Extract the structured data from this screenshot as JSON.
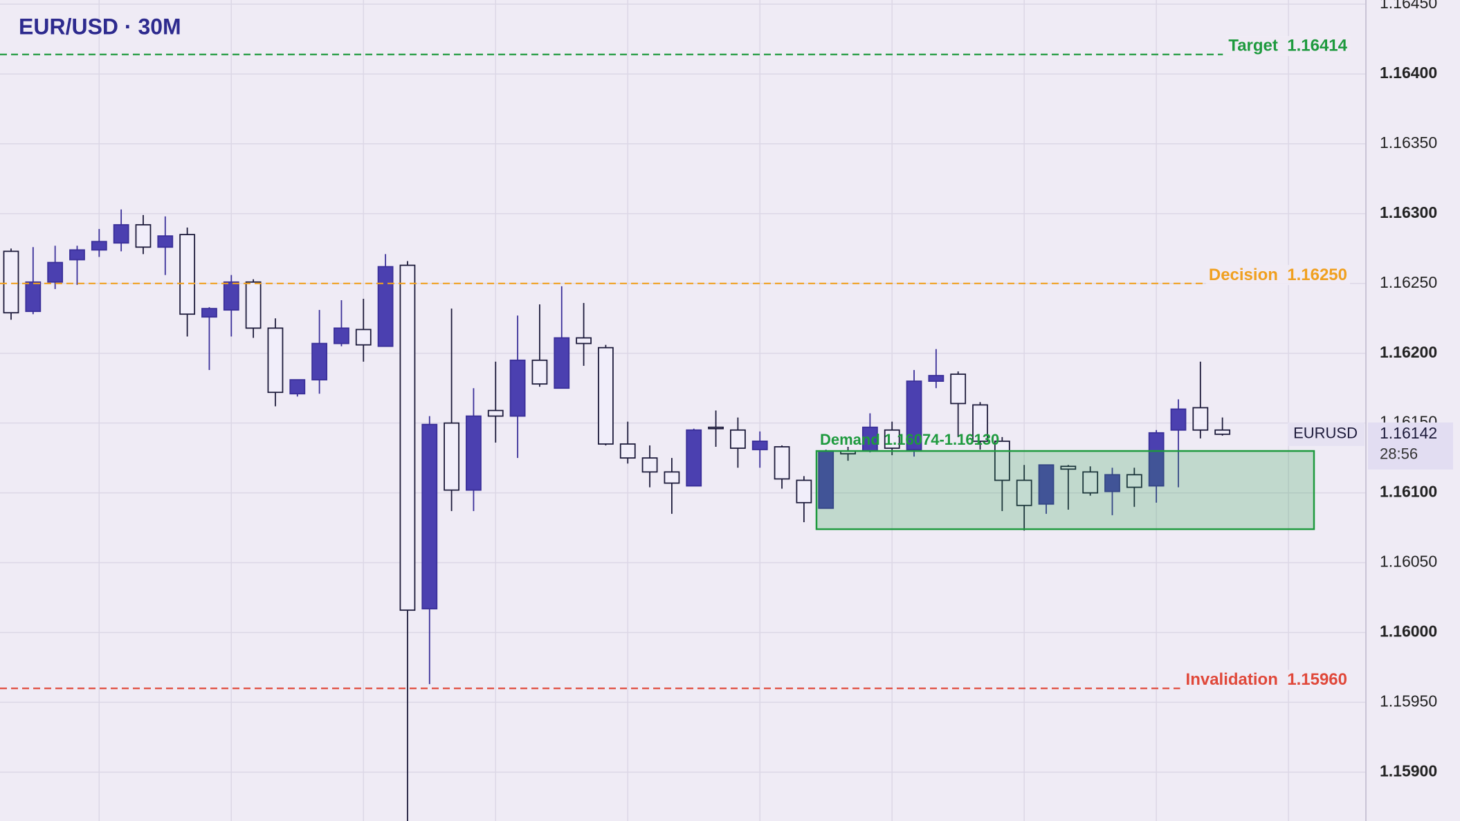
{
  "chart_data": {
    "type": "candlestick",
    "title": "EUR/USD · 30M",
    "candles": {
      "open": [
        1.16273,
        1.1623,
        1.16251,
        1.16267,
        1.16274,
        1.16279,
        1.16292,
        1.16276,
        1.16285,
        1.16226,
        1.16231,
        1.16251,
        1.16218,
        1.16171,
        1.16181,
        1.16207,
        1.16217,
        1.16205,
        1.16263,
        1.16017,
        1.1615,
        1.16102,
        1.16159,
        1.16155,
        1.16195,
        1.16175,
        1.16211,
        1.16204,
        1.16135,
        1.16125,
        1.16115,
        1.16105,
        1.16147,
        1.16145,
        1.16131,
        1.16133,
        1.16109,
        1.16089,
        1.1613,
        1.1613,
        1.16145,
        1.16131,
        1.1618,
        1.16185,
        1.16163,
        1.16137,
        1.16109,
        1.16092,
        1.16119,
        1.16115,
        1.16101,
        1.16113,
        1.16105,
        1.16145,
        1.16161,
        1.16145
      ],
      "high": [
        1.16275,
        1.16276,
        1.16277,
        1.16277,
        1.16289,
        1.16303,
        1.16299,
        1.16298,
        1.1629,
        1.16233,
        1.16256,
        1.16253,
        1.16225,
        1.16181,
        1.16231,
        1.16238,
        1.16239,
        1.16271,
        1.16266,
        1.16155,
        1.16232,
        1.16175,
        1.16194,
        1.16227,
        1.16235,
        1.16248,
        1.16236,
        1.16206,
        1.16151,
        1.16134,
        1.16125,
        1.16146,
        1.16159,
        1.16154,
        1.16144,
        1.16134,
        1.16112,
        1.16131,
        1.16133,
        1.16157,
        1.16151,
        1.16188,
        1.16203,
        1.16187,
        1.16165,
        1.1614,
        1.1612,
        1.1612,
        1.1612,
        1.16119,
        1.16118,
        1.16118,
        1.16145,
        1.16167,
        1.16194,
        1.16154
      ],
      "low": [
        1.16224,
        1.16228,
        1.16246,
        1.16249,
        1.16269,
        1.16273,
        1.16271,
        1.16256,
        1.16212,
        1.16188,
        1.16212,
        1.16211,
        1.16162,
        1.16169,
        1.16171,
        1.16205,
        1.16194,
        1.16205,
        1.1586,
        1.15963,
        1.16087,
        1.16087,
        1.16136,
        1.16125,
        1.16176,
        1.16175,
        1.16191,
        1.16134,
        1.16121,
        1.16104,
        1.16085,
        1.16105,
        1.16133,
        1.16118,
        1.16118,
        1.16103,
        1.16079,
        1.16089,
        1.16123,
        1.16129,
        1.16127,
        1.16126,
        1.16175,
        1.1614,
        1.16131,
        1.16087,
        1.16073,
        1.16085,
        1.16088,
        1.16098,
        1.16084,
        1.1609,
        1.16093,
        1.16104,
        1.16139,
        1.16141
      ],
      "close": [
        1.16229,
        1.16251,
        1.16265,
        1.16274,
        1.1628,
        1.16292,
        1.16276,
        1.16284,
        1.16228,
        1.16232,
        1.16251,
        1.16218,
        1.16172,
        1.16181,
        1.16207,
        1.16218,
        1.16206,
        1.16262,
        1.16016,
        1.16149,
        1.16102,
        1.16155,
        1.16155,
        1.16195,
        1.16178,
        1.16211,
        1.16207,
        1.16135,
        1.16125,
        1.16115,
        1.16107,
        1.16145,
        1.16146,
        1.16132,
        1.16137,
        1.1611,
        1.16093,
        1.1613,
        1.16128,
        1.16147,
        1.16132,
        1.1618,
        1.16184,
        1.16164,
        1.16137,
        1.16109,
        1.16091,
        1.1612,
        1.16117,
        1.161,
        1.16113,
        1.16104,
        1.16143,
        1.1616,
        1.16145,
        1.16142
      ]
    },
    "up_color": "#4b40b0",
    "down_color": "#f1eefa",
    "ylim": [
      1.15865,
      1.16453
    ],
    "yticks": [
      {
        "value": 1.1645,
        "label": "1.16450"
      },
      {
        "value": 1.164,
        "label": "1.16400"
      },
      {
        "value": 1.1635,
        "label": "1.16350"
      },
      {
        "value": 1.163,
        "label": "1.16300"
      },
      {
        "value": 1.1625,
        "label": "1.16250"
      },
      {
        "value": 1.162,
        "label": "1.16200"
      },
      {
        "value": 1.1615,
        "label": "1.16150"
      },
      {
        "value": 1.161,
        "label": "1.16100"
      },
      {
        "value": 1.1605,
        "label": "1.16050"
      },
      {
        "value": 1.16,
        "label": "1.16000"
      },
      {
        "value": 1.1595,
        "label": "1.15950"
      },
      {
        "value": 1.159,
        "label": "1.15900"
      }
    ],
    "grid": true,
    "levels": [
      {
        "name": "Target",
        "value": 1.16414,
        "label": "1.16414",
        "color": "#1e9a3e"
      },
      {
        "name": "Decision",
        "value": 1.1625,
        "label": "1.16250",
        "color": "#f0a020"
      },
      {
        "name": "Invalidation",
        "value": 1.1596,
        "label": "1.15960",
        "color": "#e0483a"
      }
    ],
    "zone": {
      "name": "Demand",
      "low": 1.16074,
      "high": 1.1613,
      "label": "1.16074-1.16130",
      "color": "#1e9a3e"
    },
    "last_price": {
      "symbol": "EURUSD",
      "value": 1.16142,
      "countdown": "28:56"
    }
  }
}
